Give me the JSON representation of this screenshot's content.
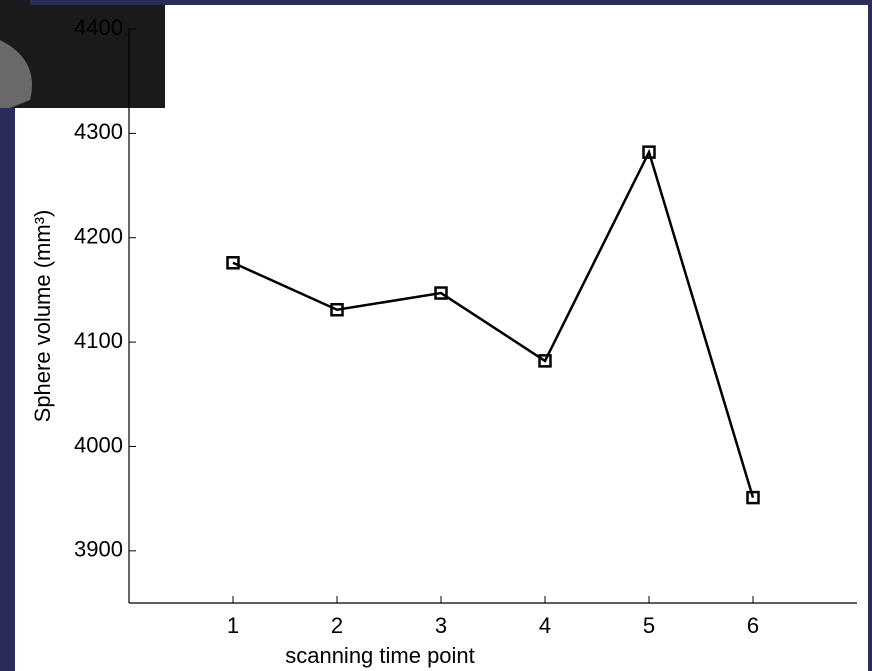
{
  "chart_data": {
    "type": "line",
    "xlabel": "scanning time point",
    "ylabel": "Sphere volume (mm³)",
    "x": [
      1,
      2,
      3,
      4,
      5,
      6
    ],
    "series": [
      {
        "color": "#000000",
        "values": [
          4176,
          4131,
          4147,
          4082,
          4282,
          3951
        ]
      }
    ],
    "xlim": [
      0,
      7
    ],
    "xticks": [
      1,
      2,
      3,
      4,
      5,
      6
    ],
    "ylim": [
      3850,
      4400
    ],
    "yticks": [
      3900,
      4000,
      4100,
      4200,
      4300,
      4400
    ],
    "marker": "square",
    "grid": false
  }
}
